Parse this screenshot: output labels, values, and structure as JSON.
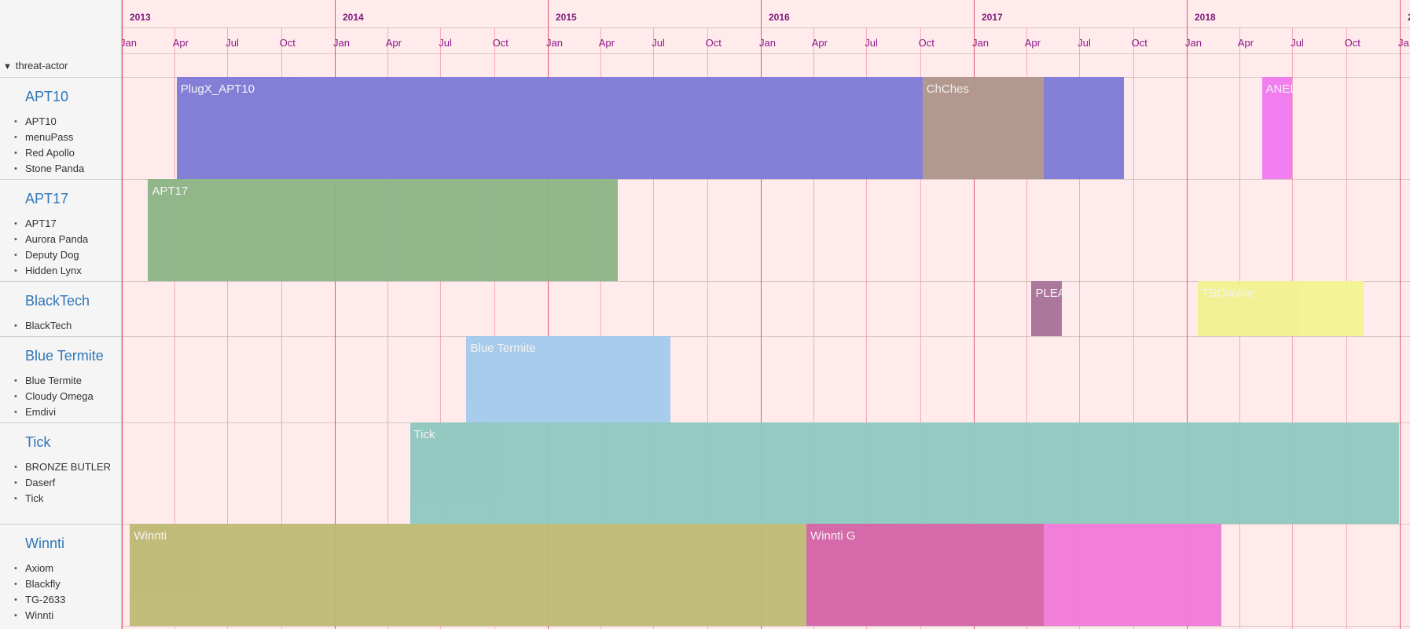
{
  "timeline": {
    "years": [
      "2013",
      "2014",
      "2015",
      "2016",
      "2017",
      "2018",
      "2"
    ],
    "months": [
      "Jan",
      "Apr",
      "Jul",
      "Oct",
      "Jan",
      "Apr",
      "Jul",
      "Oct",
      "Jan",
      "Apr",
      "Jul",
      "Oct",
      "Jan",
      "Apr",
      "Jul",
      "Oct",
      "Jan",
      "Apr",
      "Jul",
      "Oct",
      "Jan",
      "Apr",
      "Jul",
      "Oct",
      "Ja"
    ]
  },
  "group_header": {
    "label": "threat-actor",
    "toggle_icon": "triangle-down-icon"
  },
  "groups": [
    {
      "title": "APT10",
      "aliases": [
        "APT10",
        "menuPass",
        "Red Apollo",
        "Stone Panda"
      ]
    },
    {
      "title": "APT17",
      "aliases": [
        "APT17",
        "Aurora Panda",
        "Deputy Dog",
        "Hidden Lynx"
      ]
    },
    {
      "title": "BlackTech",
      "aliases": [
        "BlackTech"
      ]
    },
    {
      "title": "Blue Termite",
      "aliases": [
        "Blue Termite",
        "Cloudy Omega",
        "Emdivi"
      ]
    },
    {
      "title": "Tick",
      "aliases": [
        "BRONZE BUTLER",
        "Daserf",
        "Tick"
      ]
    },
    {
      "title": "Winnti",
      "aliases": [
        "Axiom",
        "Blackfly",
        "TG-2633",
        "Winnti"
      ]
    }
  ],
  "bars": [
    {
      "label": "PlugX_APT10",
      "group": 0,
      "start": "2013-04-05",
      "end": "2017-09-15",
      "color": "#7f7bd6"
    },
    {
      "label": "ChChes",
      "group": 0,
      "start": "2016-10-05",
      "end": "2017-05-01",
      "color": "#b49a8a"
    },
    {
      "label": "ANEL",
      "group": 0,
      "start": "2018-05-10",
      "end": "2018-07-01",
      "color": "#f07af0"
    },
    {
      "label": "APT17",
      "group": 1,
      "start": "2013-02-15",
      "end": "2015-05-01",
      "color": "#8db486"
    },
    {
      "label": "PLEAD",
      "group": 2,
      "start": "2017-04-10",
      "end": "2017-06-01",
      "color": "#a9739a"
    },
    {
      "label": "TSCookie",
      "group": 2,
      "start": "2018-01-20",
      "end": "2018-11-01",
      "color": "#f2f293"
    },
    {
      "label": "Blue Termite",
      "group": 3,
      "start": "2014-08-15",
      "end": "2015-07-31",
      "color": "#a4cbeb"
    },
    {
      "label": "Tick",
      "group": 4,
      "start": "2014-05-10",
      "end": "2018-12-31",
      "color": "#8fc8bf"
    },
    {
      "label": "Winnti",
      "group": 5,
      "start": "2013-01-15",
      "end": "2016-03-20",
      "color": "#bfba75"
    },
    {
      "label": "Winnti G",
      "group": 5,
      "start": "2016-03-20",
      "end": "2017-05-01",
      "color": "#d465a8"
    },
    {
      "label": "",
      "group": 5,
      "start": "2017-05-01",
      "end": "2018-03-01",
      "color": "#f07ad9"
    }
  ]
}
